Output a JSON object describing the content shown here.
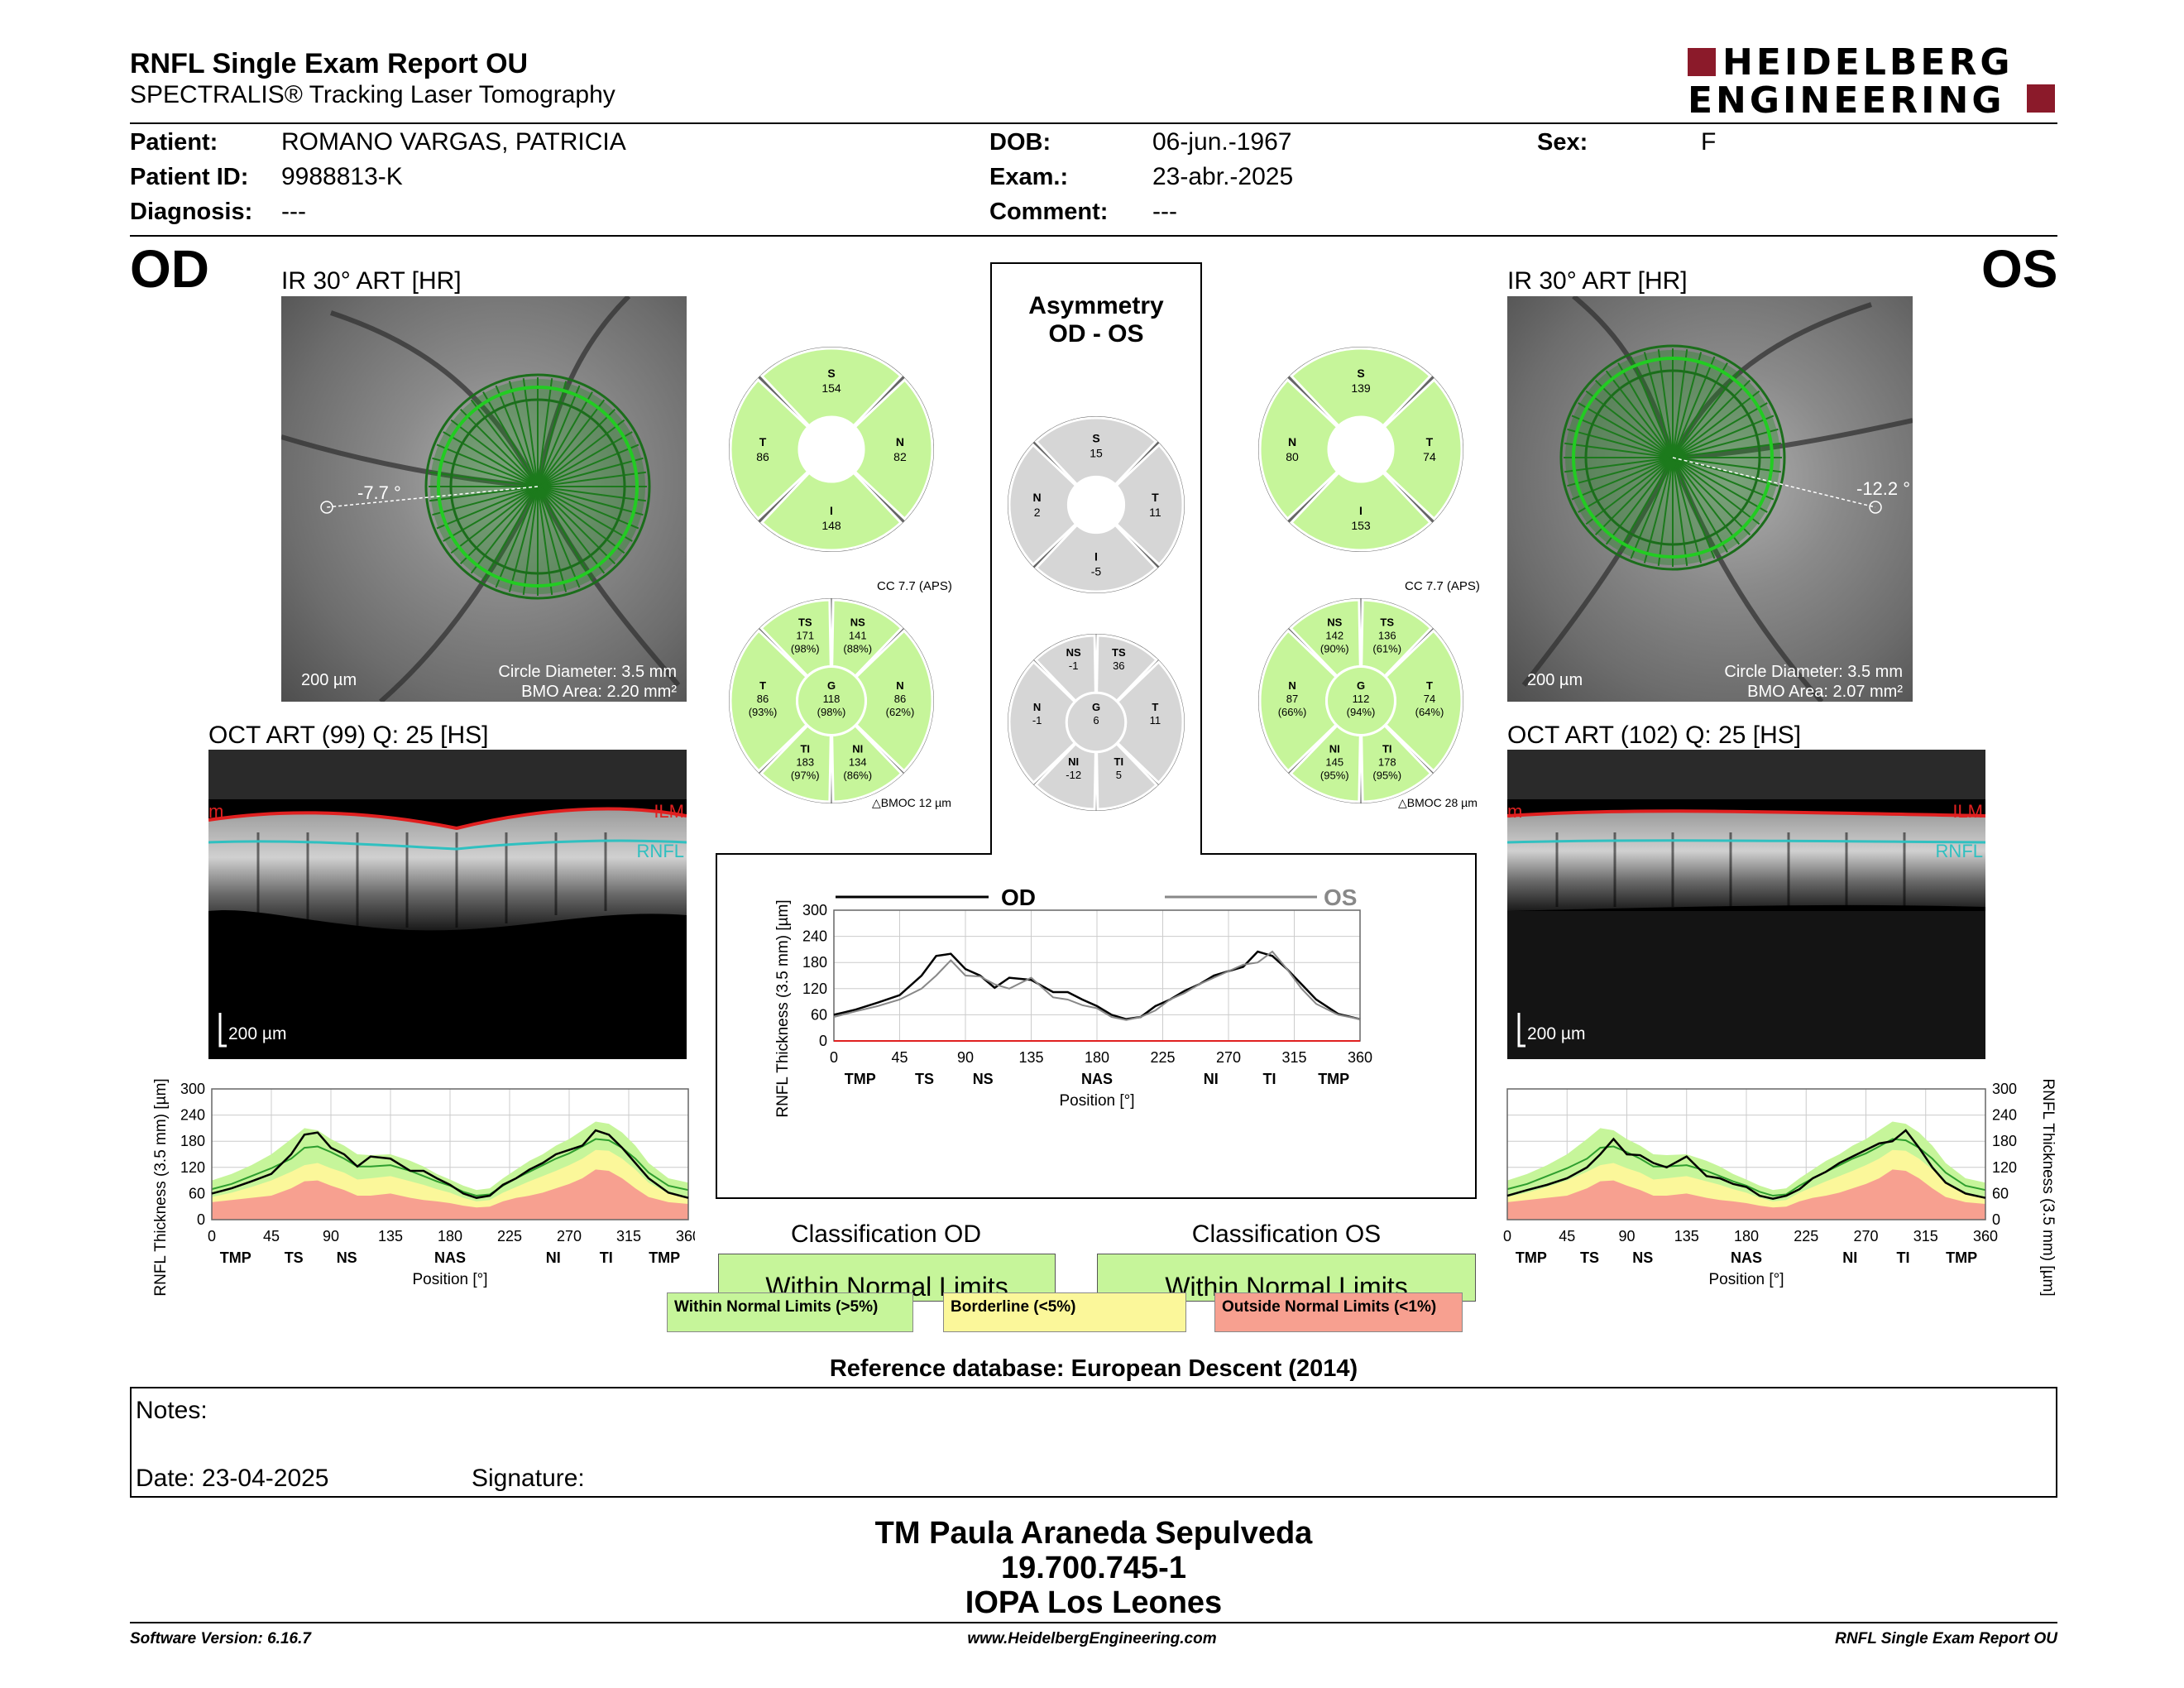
{
  "header": {
    "title": "RNFL Single Exam Report OU",
    "subtitle": "SPECTRALIS® Tracking Laser Tomography",
    "brand_line1": "HEIDELBERG",
    "brand_line2": "ENGINEERING"
  },
  "patient": {
    "patient_label": "Patient:",
    "patient_value": "ROMANO VARGAS, PATRICIA",
    "id_label": "Patient ID:",
    "id_value": "9988813-K",
    "diagnosis_label": "Diagnosis:",
    "diagnosis_value": "---",
    "dob_label": "DOB:",
    "dob_value": "06-jun.-1967",
    "exam_label": "Exam.:",
    "exam_value": "23-abr.-2025",
    "comment_label": "Comment:",
    "comment_value": "---",
    "sex_label": "Sex:",
    "sex_value": "F"
  },
  "od": {
    "eye_label": "OD",
    "ir_title": "IR 30° ART [HR]",
    "angle": "-7.7 °",
    "scale": "200 µm",
    "circle_diameter": "Circle Diameter: 3.5 mm",
    "bmo_area": "BMO Area: 2.20 mm²",
    "oct_title": "OCT ART (99) Q: 25 [HS]",
    "oct_scale": "200 µm",
    "ilm_label": "ILM",
    "rnfl_label": "RNFL",
    "oct_edge_letter": "m",
    "quad": {
      "S": "154",
      "T": "86",
      "N": "82",
      "I": "148"
    },
    "cc": "CC 7.7 (APS)",
    "bmoc": "BMOC 12 µm",
    "sectors": {
      "TS": [
        "171",
        "(98%)"
      ],
      "NS": [
        "141",
        "(88%)"
      ],
      "T": [
        "86",
        "(93%)"
      ],
      "G": [
        "118",
        "(98%)"
      ],
      "N": [
        "86",
        "(62%)"
      ],
      "TI": [
        "183",
        "(97%)"
      ],
      "NI": [
        "134",
        "(86%)"
      ]
    },
    "classification_title": "Classification OD",
    "classification": "Within Normal Limits"
  },
  "os": {
    "eye_label": "OS",
    "ir_title": "IR 30° ART [HR]",
    "angle": "-12.2 °",
    "scale": "200 µm",
    "circle_diameter": "Circle Diameter: 3.5 mm",
    "bmo_area": "BMO Area: 2.07 mm²",
    "oct_title": "OCT ART (102) Q: 25 [HS]",
    "oct_scale": "200 µm",
    "ilm_label": "ILM",
    "rnfl_label": "RNFL",
    "oct_edge_letter": "m",
    "quad": {
      "S": "139",
      "N": "80",
      "T": "74",
      "I": "153"
    },
    "cc": "CC 7.7 (APS)",
    "bmoc": "BMOC 28 µm",
    "sectors": {
      "NS": [
        "142",
        "(90%)"
      ],
      "TS": [
        "136",
        "(61%)"
      ],
      "N": [
        "87",
        "(66%)"
      ],
      "G": [
        "112",
        "(94%)"
      ],
      "T": [
        "74",
        "(64%)"
      ],
      "NI": [
        "145",
        "(95%)"
      ],
      "TI": [
        "178",
        "(95%)"
      ]
    },
    "classification_title": "Classification OS",
    "classification": "Within Normal Limits"
  },
  "asymmetry": {
    "title_line1": "Asymmetry",
    "title_line2": "OD - OS",
    "quad": {
      "S": "15",
      "N": "2",
      "T": "11",
      "I": "-5"
    },
    "sectors": {
      "NS": "-1",
      "TS": "36",
      "N": "-1",
      "G": "6",
      "T": "11",
      "NI": "-12",
      "TI": "5"
    }
  },
  "sector_letters": {
    "S": "S",
    "T": "T",
    "N": "N",
    "I": "I",
    "TS": "TS",
    "NS": "NS",
    "G": "G",
    "TI": "TI",
    "NI": "NI"
  },
  "legend": {
    "wnl": "Within Normal Limits (>5%)",
    "bl": "Borderline (<5%)",
    "onl": "Outside Normal Limits (<1%)"
  },
  "reference": "Reference database: European Descent (2014)",
  "notes": {
    "notes_label": "Notes:",
    "date_label": "Date: 23-04-2025",
    "signature_label": "Signature:"
  },
  "signature_block": {
    "line1": "TM Paula Araneda Sepulveda",
    "line2": "19.700.745-1",
    "line3": "IOPA Los Leones"
  },
  "footer": {
    "software": "Software Version: 6.16.7",
    "website": "www.HeidelbergEngineering.com",
    "report": "RNFL Single Exam Report OU"
  },
  "colors": {
    "normal": "#c6f59a",
    "borderline": "#fbf79a",
    "outside": "#f7a090",
    "asym": "#d6d6d6",
    "green_ring": "#22cc22",
    "ilm": "#e02020",
    "rnfl": "#30c0c0"
  },
  "chart_data": [
    {
      "type": "line",
      "name_key": "od_profile",
      "xlabel": "Position [°]",
      "ylabel": "RNFL Thickness (3.5 mm) [µm]",
      "xlim": [
        0,
        360
      ],
      "ylim": [
        0,
        300
      ],
      "xticks": [
        0,
        45,
        90,
        135,
        180,
        225,
        270,
        315,
        360
      ],
      "yticks": [
        0,
        60,
        120,
        180,
        240,
        300
      ],
      "sector_ticks": [
        [
          "TMP",
          18
        ],
        [
          "TS",
          62
        ],
        [
          "NS",
          102
        ],
        [
          "NAS",
          180
        ],
        [
          "NI",
          258
        ],
        [
          "TI",
          298
        ],
        [
          "TMP",
          342
        ]
      ],
      "x": [
        0,
        15,
        30,
        45,
        60,
        70,
        80,
        90,
        100,
        110,
        120,
        135,
        150,
        160,
        170,
        180,
        190,
        200,
        210,
        220,
        230,
        240,
        250,
        260,
        270,
        280,
        290,
        300,
        310,
        320,
        330,
        345,
        360
      ],
      "series": [
        {
          "values": [
            60,
            72,
            88,
            105,
            150,
            195,
            200,
            165,
            150,
            122,
            145,
            140,
            112,
            112,
            95,
            80,
            60,
            50,
            55,
            80,
            95,
            115,
            130,
            150,
            160,
            170,
            205,
            195,
            165,
            130,
            95,
            62,
            50
          ]
        }
      ],
      "bands": {
        "outside": [
          40,
          45,
          50,
          55,
          72,
          88,
          90,
          78,
          68,
          55,
          55,
          60,
          50,
          45,
          42,
          38,
          32,
          28,
          30,
          42,
          50,
          55,
          62,
          72,
          82,
          95,
          115,
          112,
          95,
          72,
          52,
          40,
          36
        ],
        "borderline": [
          52,
          62,
          75,
          90,
          110,
          125,
          130,
          118,
          108,
          92,
          95,
          100,
          88,
          80,
          70,
          62,
          50,
          42,
          45,
          62,
          75,
          88,
          100,
          112,
          125,
          140,
          160,
          158,
          140,
          115,
          85,
          60,
          50
        ],
        "normal": [
          90,
          105,
          125,
          150,
          185,
          210,
          205,
          185,
          170,
          150,
          148,
          150,
          135,
          122,
          105,
          92,
          78,
          68,
          72,
          95,
          115,
          135,
          150,
          170,
          185,
          205,
          225,
          220,
          200,
          170,
          130,
          95,
          85
        ],
        "mean": [
          70,
          82,
          100,
          118,
          140,
          165,
          168,
          155,
          140,
          122,
          122,
          125,
          112,
          100,
          88,
          78,
          64,
          55,
          58,
          78,
          95,
          110,
          125,
          140,
          152,
          168,
          185,
          182,
          165,
          140,
          108,
          78,
          68
        ]
      }
    },
    {
      "type": "line",
      "name_key": "os_profile",
      "xlabel": "Position [°]",
      "ylabel": "RNFL Thickness (3.5 mm) [µm]",
      "xlim": [
        0,
        360
      ],
      "ylim": [
        0,
        300
      ],
      "xticks": [
        0,
        45,
        90,
        135,
        180,
        225,
        270,
        315,
        360
      ],
      "yticks": [
        0,
        60,
        120,
        180,
        240,
        300
      ],
      "sector_ticks": [
        [
          "TMP",
          18
        ],
        [
          "TS",
          62
        ],
        [
          "NS",
          102
        ],
        [
          "NAS",
          180
        ],
        [
          "NI",
          258
        ],
        [
          "TI",
          298
        ],
        [
          "TMP",
          342
        ]
      ],
      "x": [
        0,
        15,
        30,
        45,
        60,
        70,
        80,
        90,
        100,
        110,
        120,
        135,
        150,
        160,
        170,
        180,
        190,
        200,
        210,
        220,
        230,
        240,
        250,
        260,
        270,
        280,
        290,
        300,
        310,
        320,
        330,
        345,
        360
      ],
      "series": [
        {
          "values": [
            55,
            68,
            80,
            95,
            120,
            150,
            185,
            150,
            148,
            130,
            120,
            145,
            100,
            95,
            82,
            75,
            55,
            48,
            55,
            70,
            95,
            110,
            130,
            145,
            160,
            175,
            180,
            205,
            165,
            120,
            85,
            60,
            50
          ]
        }
      ],
      "bands": {
        "outside": [
          40,
          45,
          50,
          55,
          72,
          88,
          90,
          78,
          68,
          55,
          55,
          60,
          50,
          45,
          42,
          38,
          32,
          28,
          30,
          42,
          50,
          55,
          62,
          72,
          82,
          95,
          115,
          112,
          95,
          72,
          52,
          40,
          36
        ],
        "borderline": [
          52,
          62,
          75,
          90,
          110,
          125,
          130,
          118,
          108,
          92,
          95,
          100,
          88,
          80,
          70,
          62,
          50,
          42,
          45,
          62,
          75,
          88,
          100,
          112,
          125,
          140,
          160,
          158,
          140,
          115,
          85,
          60,
          50
        ],
        "normal": [
          90,
          105,
          125,
          150,
          185,
          210,
          205,
          185,
          170,
          150,
          148,
          150,
          135,
          122,
          105,
          92,
          78,
          68,
          72,
          95,
          115,
          135,
          150,
          170,
          185,
          205,
          225,
          220,
          200,
          170,
          130,
          95,
          85
        ],
        "mean": [
          70,
          82,
          100,
          118,
          140,
          165,
          168,
          155,
          140,
          122,
          122,
          125,
          112,
          100,
          88,
          78,
          64,
          55,
          58,
          78,
          95,
          110,
          125,
          140,
          152,
          168,
          185,
          182,
          165,
          140,
          108,
          78,
          68
        ]
      }
    },
    {
      "type": "line",
      "name_key": "asym_profile",
      "xlabel": "Position [°]",
      "ylabel": "RNFL Thickness (3.5 mm) [µm]",
      "xlim": [
        0,
        360
      ],
      "ylim": [
        0,
        300
      ],
      "xticks": [
        0,
        45,
        90,
        135,
        180,
        225,
        270,
        315,
        360
      ],
      "yticks": [
        0,
        60,
        120,
        180,
        240,
        300
      ],
      "sector_ticks": [
        [
          "TMP",
          18
        ],
        [
          "TS",
          62
        ],
        [
          "NS",
          102
        ],
        [
          "NAS",
          180
        ],
        [
          "NI",
          258
        ],
        [
          "TI",
          298
        ],
        [
          "TMP",
          342
        ]
      ],
      "legend": [
        "OD",
        "OS"
      ],
      "x": [
        0,
        15,
        30,
        45,
        60,
        70,
        80,
        90,
        100,
        110,
        120,
        135,
        150,
        160,
        170,
        180,
        190,
        200,
        210,
        220,
        230,
        240,
        250,
        260,
        270,
        280,
        290,
        300,
        310,
        320,
        330,
        345,
        360
      ],
      "series": [
        {
          "name": "OD",
          "values": [
            60,
            72,
            88,
            105,
            150,
            195,
            200,
            165,
            150,
            122,
            145,
            140,
            112,
            112,
            95,
            80,
            60,
            50,
            55,
            80,
            95,
            115,
            130,
            150,
            160,
            170,
            205,
            195,
            165,
            130,
            95,
            62,
            50
          ]
        },
        {
          "name": "OS",
          "values": [
            55,
            68,
            80,
            95,
            120,
            150,
            185,
            150,
            148,
            130,
            120,
            145,
            100,
            95,
            82,
            75,
            55,
            48,
            55,
            70,
            95,
            110,
            130,
            145,
            160,
            175,
            180,
            205,
            165,
            120,
            85,
            60,
            50
          ]
        }
      ]
    }
  ]
}
